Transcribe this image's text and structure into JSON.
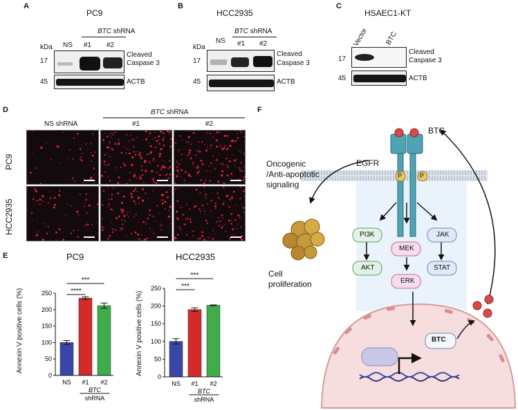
{
  "panel_labels": {
    "A": "A",
    "B": "B",
    "C": "C",
    "D": "D",
    "E": "E",
    "F": "F"
  },
  "western": {
    "kda": "kDa",
    "mw": {
      "m17": "17",
      "m45": "45"
    },
    "targets": {
      "cleaved_l1": "Cleaved",
      "cleaved_l2": "Caspase 3",
      "actb": "ACTB"
    },
    "pc9": {
      "title": "PC9",
      "lanes": [
        "NS",
        "#1",
        "#2"
      ],
      "shrna_gene": "BTC",
      "shrna_word": " shRNA"
    },
    "hcc": {
      "title": "HCC2935",
      "lanes": [
        "NS",
        "#1",
        "#2"
      ],
      "shrna_gene": "BTC",
      "shrna_word": " shRNA"
    },
    "hsaec": {
      "title": "HSAEC1-KT",
      "lanes": [
        "Vector",
        "BTC"
      ]
    }
  },
  "microscopy": {
    "col_labels": {
      "ns": "NS shRNA",
      "g1": "#1",
      "g2": "#2"
    },
    "header_gene": "BTC",
    "header_word": " shRNA",
    "rows": [
      "PC9",
      "HCC2935"
    ]
  },
  "chart_data": [
    {
      "type": "bar",
      "title": "PC9",
      "ylabel": "Annexin V positive cells (%)",
      "categories": [
        "NS",
        "#1",
        "#2"
      ],
      "values": [
        100,
        235,
        212
      ],
      "errors": [
        6,
        4,
        8
      ],
      "colors": [
        "#3a45a8",
        "#d42a2a",
        "#3fae4a"
      ],
      "ylim": [
        0,
        250
      ],
      "yticks": [
        0,
        50,
        100,
        150,
        200,
        250
      ],
      "group_label_gene": "BTC",
      "group_label_word": "shRNA",
      "significance": [
        {
          "from": "NS",
          "to": "#2",
          "label": "***"
        },
        {
          "from": "NS",
          "to": "#1",
          "label": "****"
        }
      ]
    },
    {
      "type": "bar",
      "title": "HCC2935",
      "ylabel": "Annexin V positive cells (%)",
      "categories": [
        "NS",
        "#1",
        "#2"
      ],
      "values": [
        100,
        190,
        202
      ],
      "errors": [
        8,
        5,
        1
      ],
      "colors": [
        "#3a45a8",
        "#d42a2a",
        "#3fae4a"
      ],
      "ylim": [
        0,
        250
      ],
      "yticks": [
        0,
        50,
        100,
        150,
        200,
        250
      ],
      "group_label_gene": "BTC",
      "group_label_word": "shRNA",
      "significance": [
        {
          "from": "NS",
          "to": "#2",
          "label": "***"
        },
        {
          "from": "NS",
          "to": "#1",
          "label": "***"
        }
      ]
    }
  ],
  "pathway": {
    "btc": "BTC",
    "egfr": "EGFR",
    "p": "P",
    "signal_l1": "Oncogenic",
    "signal_l2": "/Anti-apoptotic",
    "signal_l3": "signaling",
    "cell_l1": "Cell",
    "cell_l2": "proliferation",
    "nodes": {
      "pi3k": "PI3K",
      "akt": "AKT",
      "mek": "MEK",
      "erk": "ERK",
      "jak": "JAK",
      "stat": "STAT",
      "btc_gene": "BTC"
    }
  }
}
